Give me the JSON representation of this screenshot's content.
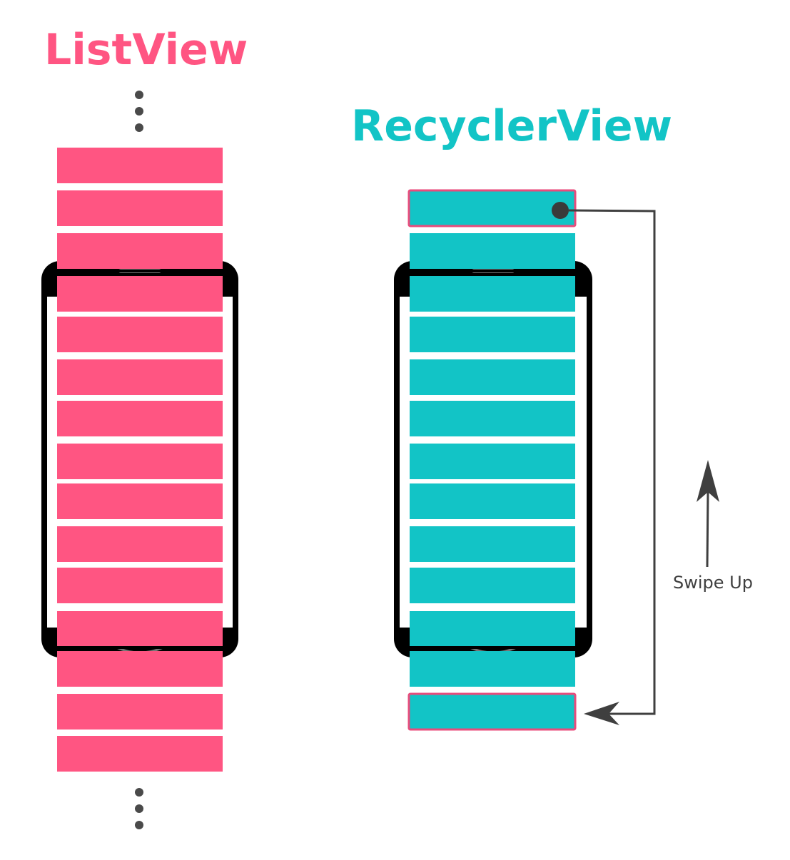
{
  "listview": {
    "title": "ListView",
    "color": "#ff5582",
    "item_count": 15
  },
  "recyclerview": {
    "title": "RecyclerView",
    "color": "#12c4c6",
    "outline_color": "#e94c7c",
    "item_count": 13
  },
  "gesture": {
    "label": "Swipe Up",
    "icon": "arrow-up-icon",
    "color": "#3f3f3f"
  },
  "device": {
    "frame_color": "#000000",
    "screen_color": "#ffffff"
  }
}
